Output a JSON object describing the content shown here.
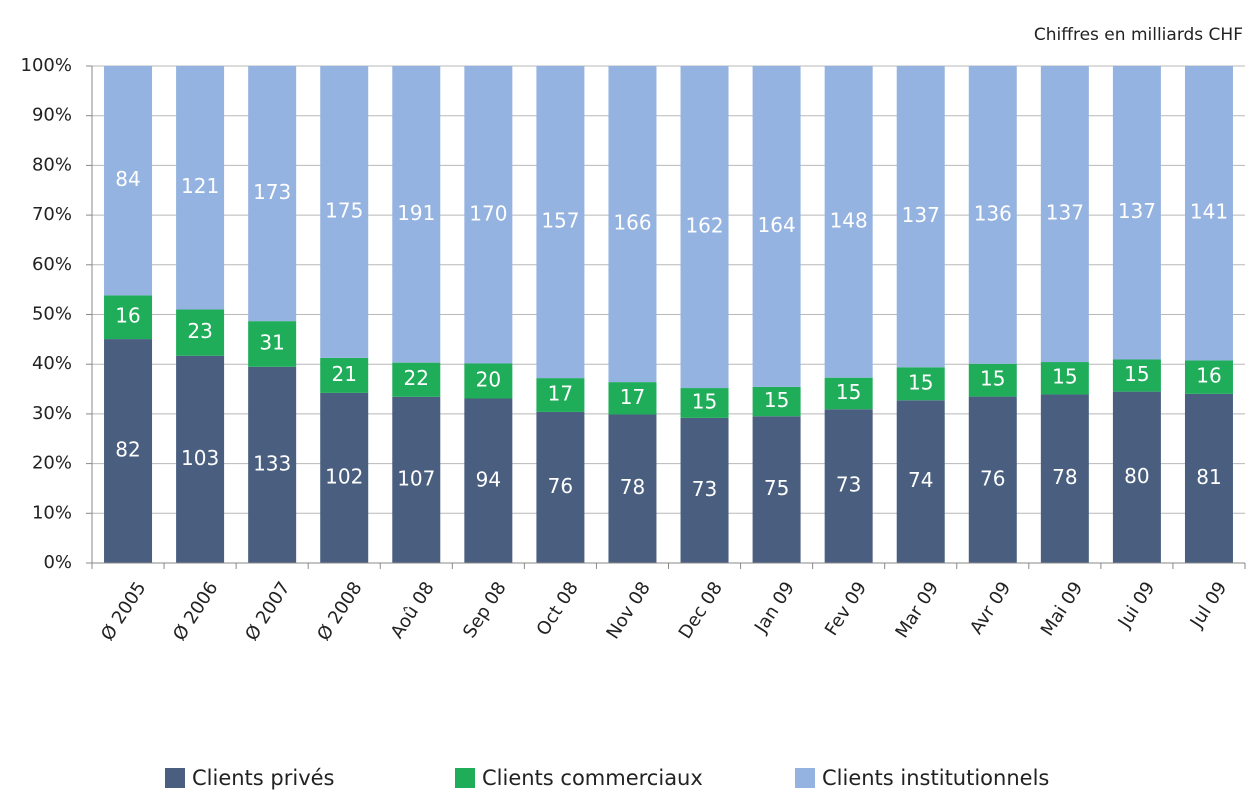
{
  "chart_data": {
    "type": "bar",
    "stacking": "percent",
    "subtitle": "Chiffres en milliards CHF",
    "categories": [
      "Ø 2005",
      "Ø 2006",
      "Ø 2007",
      "Ø 2008",
      "Aoû 08",
      "Sep 08",
      "Oct 08",
      "Nov 08",
      "Dec 08",
      "Jan 09",
      "Fev 09",
      "Mar 09",
      "Avr 09",
      "Mai 09",
      "Jui 09",
      "Jul 09"
    ],
    "series": [
      {
        "name": "Clients privés",
        "color": "#4a5f80",
        "values": [
          82,
          103,
          133,
          102,
          107,
          94,
          76,
          78,
          73,
          75,
          73,
          74,
          76,
          78,
          80,
          81
        ]
      },
      {
        "name": "Clients commerciaux",
        "color": "#1fad5a",
        "values": [
          16,
          23,
          31,
          21,
          22,
          20,
          17,
          17,
          15,
          15,
          15,
          15,
          15,
          15,
          15,
          16
        ]
      },
      {
        "name": "Clients institutionnels",
        "color": "#95b3e0",
        "values": [
          84,
          121,
          173,
          175,
          191,
          170,
          157,
          166,
          162,
          164,
          148,
          137,
          136,
          137,
          137,
          141
        ]
      }
    ],
    "ylim": [
      0,
      100
    ],
    "yticks": [
      {
        "value": 0,
        "label": "0%"
      },
      {
        "value": 10,
        "label": "10%"
      },
      {
        "value": 20,
        "label": "20%"
      },
      {
        "value": 30,
        "label": "30%"
      },
      {
        "value": 40,
        "label": "40%"
      },
      {
        "value": 50,
        "label": "50%"
      },
      {
        "value": 60,
        "label": "60%"
      },
      {
        "value": 70,
        "label": "70%"
      },
      {
        "value": 80,
        "label": "80%"
      },
      {
        "value": 90,
        "label": "90%"
      },
      {
        "value": 100,
        "label": "100%"
      }
    ],
    "grid": true,
    "legend": "bottom"
  }
}
